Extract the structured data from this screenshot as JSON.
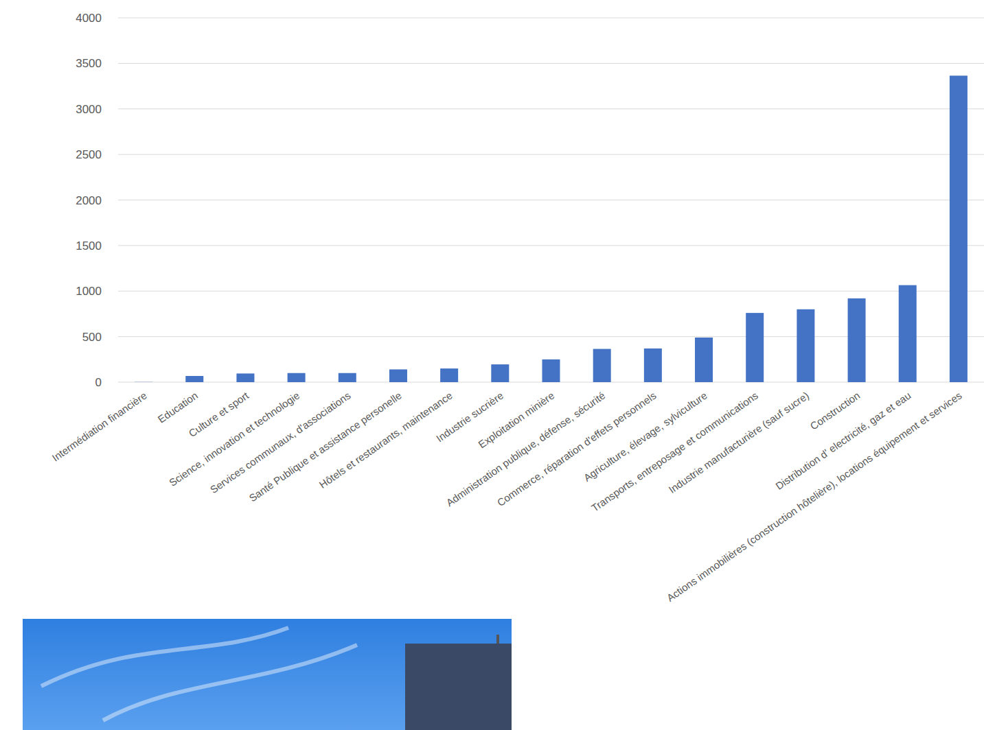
{
  "chart_data": {
    "type": "bar",
    "categories": [
      "Intermédiation financière",
      "Education",
      "Culture et sport",
      "Science, innovation et technologie",
      "Services communaux, d'associations",
      "Santé Publique et assistance personelle",
      "Hôtels et restaurants, maintenance",
      "Industrie sucrière",
      "Exploitation minière",
      "Administration publique, défense, sécurité",
      "Commerce, réparation d'effets personnels",
      "Agriculture, élevage, sylviculture",
      "Transports, entreposage et communications",
      "Industrie manufacturière (sauf sucre)",
      "Construction",
      "Distribution d' electricité, gaz et eau",
      "Actions immobilières (construction hôtelière), locations équipement et services"
    ],
    "values": [
      2,
      68,
      95,
      100,
      100,
      140,
      150,
      195,
      250,
      365,
      370,
      490,
      760,
      800,
      920,
      1065,
      3365
    ],
    "color": "#4472c4",
    "ylim": [
      0,
      4000
    ],
    "yticks": [
      0,
      500,
      1000,
      1500,
      2000,
      2500,
      3000,
      3500,
      4000
    ],
    "grid": true
  }
}
